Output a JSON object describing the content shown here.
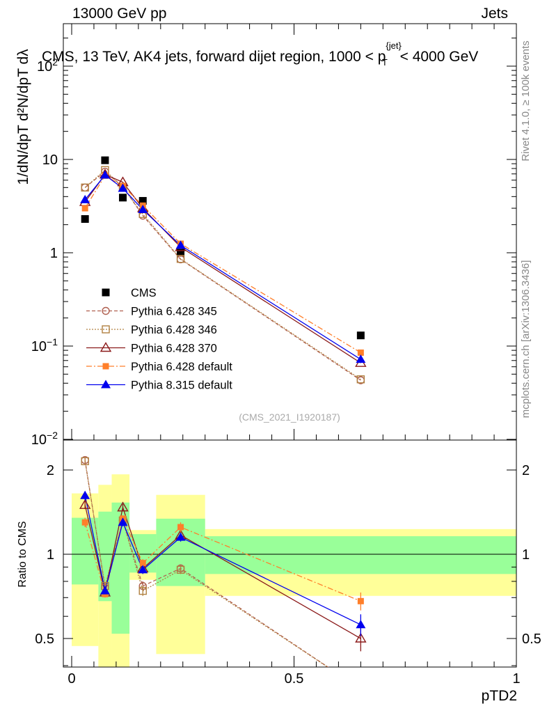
{
  "header": {
    "left": "13000 GeV pp",
    "right": "Jets"
  },
  "side": {
    "rivet": "Rivet 4.1.0, ≥ 100k events",
    "mcplots": "mcplots.cern.ch [arXiv:1306.3436]"
  },
  "chart_data": {
    "type": "scatter",
    "title": "CMS, 13 TeV, AK4 jets, forward dijet region, 1000 < p_T^{jet} < 4000 GeV",
    "ylabel_main": "1/dN/dpT  d²N/dpT dλ",
    "ylabel_ratio": "Ratio to CMS",
    "xlabel": "pTD2",
    "watermark": "(CMS_2021_I1920187)",
    "xlim": [
      0,
      1
    ],
    "ylim_main": [
      0.01,
      300
    ],
    "ylim_ratio": [
      0.35,
      2.3
    ],
    "x_ticks": [
      "0",
      "0.5",
      "1"
    ],
    "y_ticks_main": [
      "10^-2",
      "10^-1",
      "1",
      "10",
      "10^2"
    ],
    "y_ticks_ratio": [
      "0.5",
      "1",
      "2"
    ],
    "x": [
      0.03,
      0.075,
      0.115,
      0.16,
      0.245,
      0.65
    ],
    "bin_edges": [
      0,
      0.06,
      0.09,
      0.13,
      0.19,
      0.3,
      1.0
    ],
    "band_green": [
      {
        "lo": 0.78,
        "hi": 1.35
      },
      {
        "lo": 0.68,
        "hi": 1.42
      },
      {
        "lo": 0.52,
        "hi": 1.53
      },
      {
        "lo": 0.86,
        "hi": 1.18
      },
      {
        "lo": 0.77,
        "hi": 1.34
      },
      {
        "lo": 0.85,
        "hi": 1.16
      }
    ],
    "band_yellow": [
      {
        "lo": 0.47,
        "hi": 1.65
      },
      {
        "lo": 0.35,
        "hi": 1.77
      },
      {
        "lo": 0.35,
        "hi": 1.93
      },
      {
        "lo": 0.81,
        "hi": 1.22
      },
      {
        "lo": 0.44,
        "hi": 1.63
      },
      {
        "lo": 0.71,
        "hi": 1.23
      }
    ],
    "series": [
      {
        "name": "CMS",
        "color": "#000000",
        "marker": "square-filled",
        "dash": "none",
        "values": [
          2.3,
          9.8,
          3.9,
          3.6,
          1.0,
          0.13
        ],
        "ratio": [
          1,
          1,
          1,
          1,
          1,
          1
        ],
        "ratio_err": [
          0,
          0,
          0,
          0,
          0,
          0
        ]
      },
      {
        "name": "Pythia 6.428 345",
        "color": "#b06050",
        "marker": "circle-open",
        "dash": "5,3",
        "values": [
          5.0,
          7.4,
          5.1,
          2.5,
          0.85,
          0.043
        ],
        "ratio": [
          2.17,
          0.76,
          1.32,
          0.77,
          0.89,
          0.33
        ],
        "ratio_err": [
          0.04,
          0.02,
          0.03,
          0.03,
          0.03,
          0.02
        ]
      },
      {
        "name": "Pythia 6.428 346",
        "color": "#b08040",
        "marker": "square-open",
        "dash": "2,2",
        "values": [
          5.0,
          7.7,
          5.0,
          2.6,
          0.86,
          0.044
        ],
        "ratio": [
          2.15,
          0.77,
          1.32,
          0.74,
          0.88,
          0.33
        ],
        "ratio_err": [
          0.04,
          0.02,
          0.03,
          0.03,
          0.03,
          0.02
        ]
      },
      {
        "name": "Pythia 6.428 370",
        "color": "#8b1a1a",
        "marker": "triangle-open",
        "dash": "none",
        "values": [
          3.5,
          6.9,
          5.7,
          3.0,
          1.15,
          0.066
        ],
        "ratio": [
          1.5,
          0.73,
          1.47,
          0.89,
          1.17,
          0.5
        ],
        "ratio_err": [
          0.05,
          0.02,
          0.04,
          0.03,
          0.04,
          0.05
        ]
      },
      {
        "name": "Pythia 6.428 default",
        "color": "#ff7f2a",
        "marker": "square-filled-small",
        "dash": "8,3,2,3",
        "values": [
          3.0,
          6.7,
          5.2,
          3.2,
          1.25,
          0.085
        ],
        "ratio": [
          1.3,
          0.72,
          1.34,
          0.93,
          1.25,
          0.68
        ],
        "ratio_err": [
          0.05,
          0.02,
          0.04,
          0.03,
          0.05,
          0.05
        ]
      },
      {
        "name": "Pythia 8.315 default",
        "color": "#0000ee",
        "marker": "triangle-filled",
        "dash": "none",
        "values": [
          3.7,
          6.8,
          4.9,
          2.9,
          1.2,
          0.072
        ],
        "ratio": [
          1.62,
          0.74,
          1.3,
          0.88,
          1.15,
          0.56
        ],
        "ratio_err": [
          0.06,
          0.02,
          0.04,
          0.03,
          0.04,
          0.05
        ]
      }
    ]
  }
}
